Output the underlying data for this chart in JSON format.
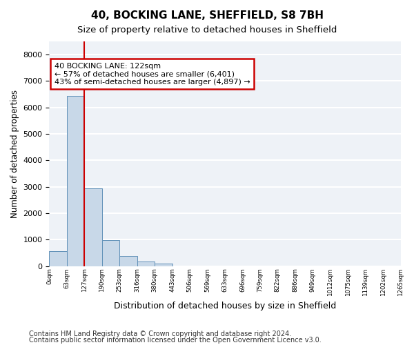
{
  "title1": "40, BOCKING LANE, SHEFFIELD, S8 7BH",
  "title2": "Size of property relative to detached houses in Sheffield",
  "xlabel": "Distribution of detached houses by size in Sheffield",
  "ylabel": "Number of detached properties",
  "bar_values": [
    560,
    6430,
    2930,
    990,
    370,
    170,
    100,
    0,
    0,
    0,
    0,
    0,
    0,
    0,
    0,
    0,
    0,
    0,
    0,
    0
  ],
  "bin_labels": [
    "0sqm",
    "63sqm",
    "127sqm",
    "190sqm",
    "253sqm",
    "316sqm",
    "380sqm",
    "443sqm",
    "506sqm",
    "569sqm",
    "633sqm",
    "696sqm",
    "759sqm",
    "822sqm",
    "886sqm",
    "949sqm",
    "1012sqm",
    "1075sqm",
    "1139sqm",
    "1202sqm",
    "1265sqm"
  ],
  "bar_color": "#c8d8e8",
  "bar_edge_color": "#6090b8",
  "vline_color": "#cc0000",
  "annotation_text": "40 BOCKING LANE: 122sqm\n← 57% of detached houses are smaller (6,401)\n43% of semi-detached houses are larger (4,897) →",
  "annotation_box_color": "white",
  "annotation_box_edge_color": "#cc0000",
  "ylim": [
    0,
    8500
  ],
  "yticks": [
    0,
    1000,
    2000,
    3000,
    4000,
    5000,
    6000,
    7000,
    8000
  ],
  "background_color": "#eef2f7",
  "grid_color": "white",
  "footer_line1": "Contains HM Land Registry data © Crown copyright and database right 2024.",
  "footer_line2": "Contains public sector information licensed under the Open Government Licence v3.0.",
  "title1_fontsize": 11,
  "title2_fontsize": 9.5,
  "xlabel_fontsize": 9,
  "ylabel_fontsize": 8.5,
  "annotation_fontsize": 8,
  "footer_fontsize": 7,
  "vline_bar_index": 2
}
